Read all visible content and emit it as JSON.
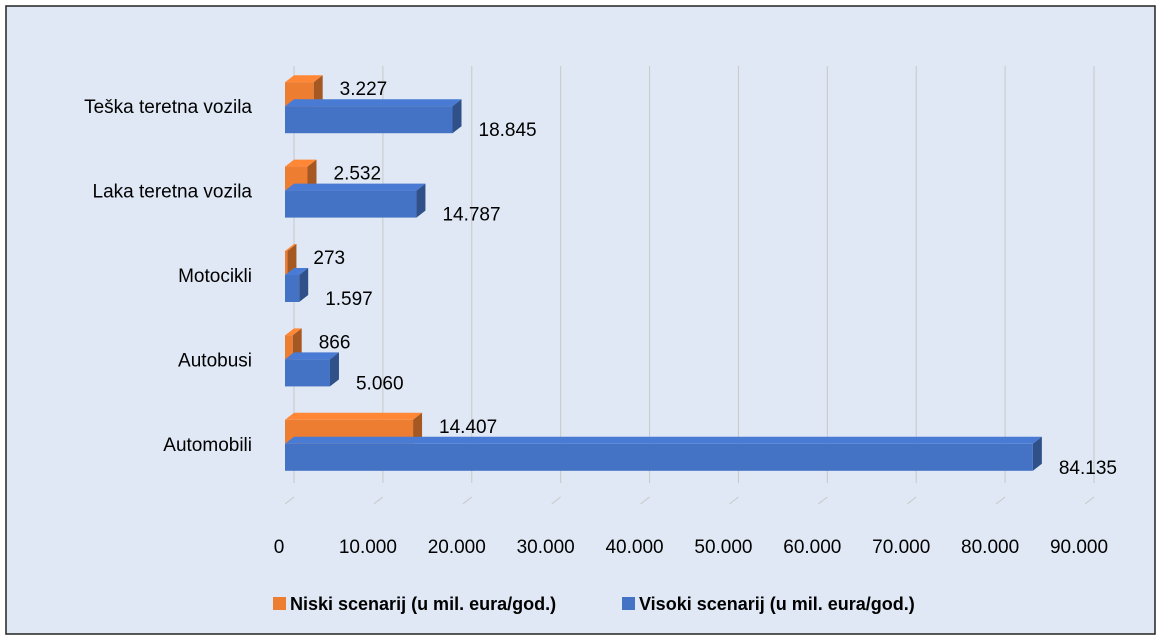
{
  "chart_data": {
    "type": "bar",
    "orientation": "horizontal",
    "categories": [
      "Automobili",
      "Autobusi",
      "Motocikli",
      "Laka teretna vozila",
      "Teška teretna vozila"
    ],
    "series": [
      {
        "name": "Niski scenarij (u mil. eura/god.)",
        "color": "#ed7d31",
        "values": [
          14407,
          866,
          273,
          2532,
          3227
        ],
        "value_labels": [
          "14.407",
          "866",
          "273",
          "2.532",
          "3.227"
        ]
      },
      {
        "name": "Visoki scenarij (u mil. eura/god.)",
        "color": "#4472c4",
        "values": [
          84135,
          5060,
          1597,
          14787,
          18845
        ],
        "value_labels": [
          "84.135",
          "5.060",
          "1.597",
          "14.787",
          "18.845"
        ]
      }
    ],
    "xlim": [
      0,
      90000
    ],
    "xticks": [
      0,
      {
        "value": 10000,
        "label": "10.000"
      },
      {
        "value": 20000,
        "label": "20.000"
      },
      {
        "value": 30000,
        "label": "30.000"
      },
      {
        "value": 40000,
        "label": "40.000"
      },
      {
        "value": 50000,
        "label": "50.000"
      },
      {
        "value": 60000,
        "label": "60.000"
      },
      {
        "value": 70000,
        "label": "70.000"
      },
      {
        "value": 80000,
        "label": "80.000"
      },
      {
        "value": 90000,
        "label": "90.000"
      }
    ],
    "grid": true,
    "legend": "bottom"
  }
}
